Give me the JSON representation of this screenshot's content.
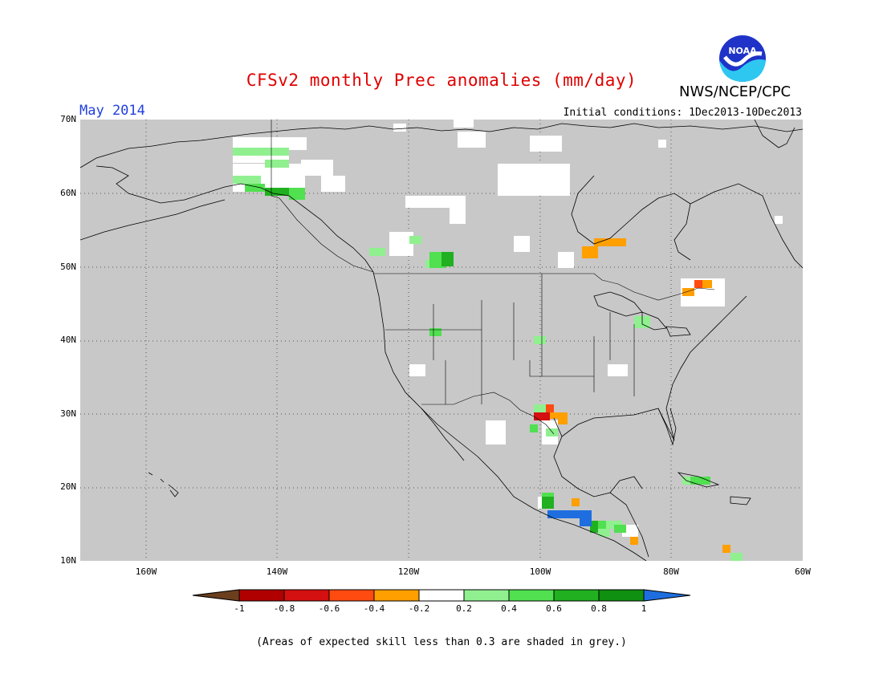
{
  "title": "CFSv2 monthly Prec anomalies (mm/day)",
  "agency": "NWS/NCEP/CPC",
  "logo_text": "NOAA",
  "month_label": "May 2014",
  "initial_conditions": "Initial conditions: 1Dec2013-10Dec2013",
  "lat_labels": [
    "70N",
    "60N",
    "50N",
    "40N",
    "30N",
    "20N",
    "10N"
  ],
  "lon_labels": [
    "160W",
    "140W",
    "120W",
    "100W",
    "80W",
    "60W"
  ],
  "colorbar": {
    "labels": [
      "-1",
      "-0.8",
      "-0.6",
      "-0.4",
      "-0.2",
      "0.2",
      "0.4",
      "0.6",
      "0.8",
      "1"
    ],
    "colors": [
      "#6b3f1e",
      "#b00000",
      "#d41010",
      "#ff4a10",
      "#ff9f00",
      "#ffffff",
      "#90f090",
      "#50e050",
      "#20b020",
      "#109010",
      "#1e6ee0"
    ]
  },
  "footer": "(Areas of expected skill less than 0.3 are shaded in grey.)",
  "map_colors": {
    "grey": "#c8c8c8",
    "land_line": "#000000"
  }
}
